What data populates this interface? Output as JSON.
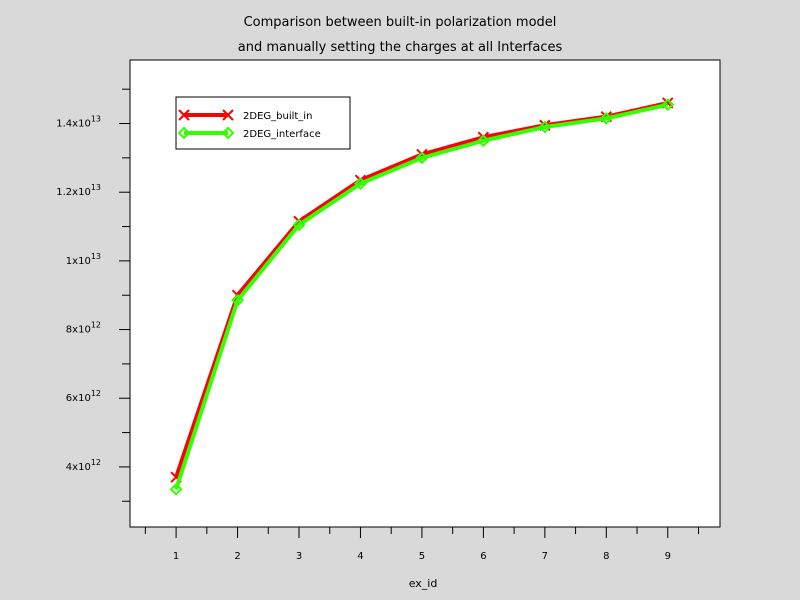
{
  "chart_data": {
    "type": "line",
    "title_lines": [
      "Comparison between built-in polarization model",
      "and manually setting the charges at all Interfaces"
    ],
    "xlabel": "ex_id",
    "ylabel": "",
    "x": [
      1,
      2,
      3,
      4,
      5,
      6,
      7,
      8,
      9
    ],
    "xlim": [
      0.25,
      9.85
    ],
    "ylim": [
      2250000000000.0,
      15850000000000.0
    ],
    "y_ticks": [
      {
        "value": 4000000000000.0,
        "mantissa": "4x10",
        "exp": "12"
      },
      {
        "value": 6000000000000.0,
        "mantissa": "6x10",
        "exp": "12"
      },
      {
        "value": 8000000000000.0,
        "mantissa": "8x10",
        "exp": "12"
      },
      {
        "value": 10000000000000.0,
        "mantissa": "1x10",
        "exp": "13"
      },
      {
        "value": 12000000000000.0,
        "mantissa": "1.2x10",
        "exp": "13"
      },
      {
        "value": 14000000000000.0,
        "mantissa": "1.4x10",
        "exp": "13"
      }
    ],
    "x_ticks": [
      1,
      2,
      3,
      4,
      5,
      6,
      7,
      8,
      9
    ],
    "grid": false,
    "legend_position": "top-left",
    "series": [
      {
        "name": "2DEG_built_in",
        "color": "#ff0000",
        "marker": "x",
        "values": [
          3700000000000.0,
          9000000000000.0,
          11150000000000.0,
          12350000000000.0,
          13100000000000.0,
          13600000000000.0,
          13950000000000.0,
          14200000000000.0,
          14600000000000.0
        ]
      },
      {
        "name": "2DEG_interface",
        "color": "#33ff00",
        "marker": "diamond",
        "values": [
          3350000000000.0,
          8850000000000.0,
          11050000000000.0,
          12250000000000.0,
          13000000000000.0,
          13500000000000.0,
          13900000000000.0,
          14150000000000.0,
          14550000000000.0
        ]
      }
    ]
  }
}
